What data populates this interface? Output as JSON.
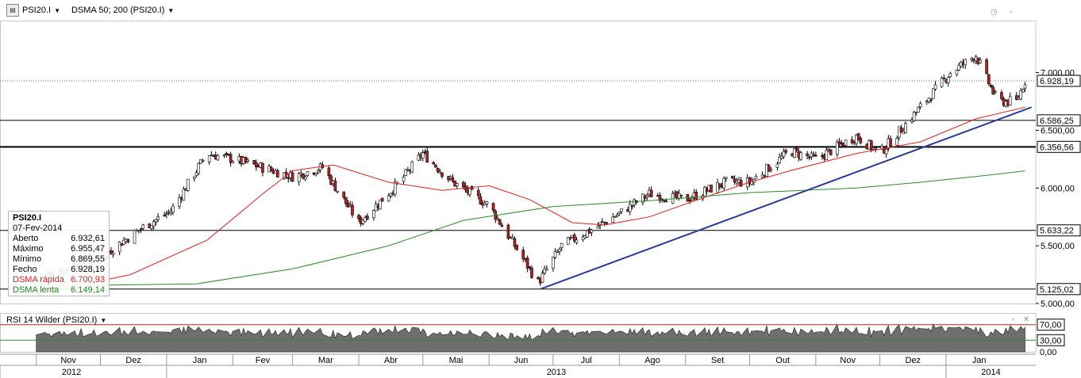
{
  "toolbar": {
    "symbol": "PSI20.I",
    "indicator": "DSMA 50; 200 (PSI20.I)"
  },
  "info_box": {
    "title": "PSI20.I",
    "date": "07-Fev-2014",
    "rows": [
      {
        "label": "Aberto",
        "value": "6.932,61",
        "color": "#000000"
      },
      {
        "label": "Máximo",
        "value": "6.955,47",
        "color": "#000000"
      },
      {
        "label": "Mínimo",
        "value": "6.869,55",
        "color": "#000000"
      },
      {
        "label": "Fecho",
        "value": "6.928,19",
        "color": "#000000"
      },
      {
        "label": "DSMA rápida",
        "value": "6.700,93",
        "color": "#e02020"
      },
      {
        "label": "DSMA lenta",
        "value": "6.149,14",
        "color": "#1a8a1a"
      }
    ]
  },
  "rsi_header": "RSI 14 Wilder (PSI20.I)",
  "colors": {
    "up_candle": "#ffffff",
    "down_candle": "#b52020",
    "fast_ma": "#e02020",
    "slow_ma": "#2a8a2a",
    "trendline": "#2b3a9a",
    "rsi_fill": "#6e6e6e",
    "rsi_upper": "#c02020",
    "rsi_lower": "#2a8a2a"
  },
  "chart_data": [
    {
      "type": "candlestick",
      "title": "PSI20.I",
      "ylim": [
        5000,
        7450
      ],
      "y_ticks": [
        "5.000,00",
        "5.500,00",
        "6.000,00",
        "6.500,00",
        "7.000,00"
      ],
      "y_tick_values": [
        5000,
        5500,
        6000,
        6500,
        7000
      ],
      "x_months": [
        "Nov",
        "Dez",
        "Jan",
        "Fev",
        "Mar",
        "Abr",
        "Mai",
        "Jun",
        "Jul",
        "Ago",
        "Set",
        "Out",
        "Nov",
        "Dez",
        "Jan"
      ],
      "x_years": [
        "2012",
        "2013",
        "2014"
      ],
      "price_levels": [
        {
          "value": 6928.19,
          "label": "6.928,19",
          "style": "dotted"
        },
        {
          "value": 6586.25,
          "label": "6.586,25",
          "style": "solid"
        },
        {
          "value": 6356.56,
          "label": "6.356,56",
          "style": "bold"
        },
        {
          "value": 5633.22,
          "label": "5.633,22",
          "style": "solid"
        },
        {
          "value": 5125.02,
          "label": "5.125,02",
          "style": "solid"
        }
      ],
      "trendline": {
        "start": [
          "2013-06-25",
          5125
        ],
        "end": [
          "2014-02-10",
          6700
        ]
      },
      "monthly_close_path": [
        [
          "2012-11-01",
          5220
        ],
        [
          "2012-12-01",
          5400
        ],
        [
          "2012-12-20",
          5650
        ],
        [
          "2013-01-03",
          5800
        ],
        [
          "2013-01-20",
          6300
        ],
        [
          "2013-02-01",
          6250
        ],
        [
          "2013-02-20",
          6150
        ],
        [
          "2013-03-01",
          6100
        ],
        [
          "2013-03-15",
          6180
        ],
        [
          "2013-04-01",
          5700
        ],
        [
          "2013-04-20",
          6050
        ],
        [
          "2013-05-01",
          6300
        ],
        [
          "2013-05-15",
          6050
        ],
        [
          "2013-06-01",
          5850
        ],
        [
          "2013-06-24",
          5180
        ],
        [
          "2013-07-05",
          5500
        ],
        [
          "2013-07-20",
          5650
        ],
        [
          "2013-08-01",
          5780
        ],
        [
          "2013-08-15",
          5950
        ],
        [
          "2013-09-01",
          5900
        ],
        [
          "2013-09-20",
          6050
        ],
        [
          "2013-10-01",
          6050
        ],
        [
          "2013-10-20",
          6320
        ],
        [
          "2013-11-01",
          6250
        ],
        [
          "2013-11-20",
          6450
        ],
        [
          "2013-12-01",
          6300
        ],
        [
          "2013-12-20",
          6700
        ],
        [
          "2014-01-03",
          7000
        ],
        [
          "2014-01-15",
          7150
        ],
        [
          "2014-01-25",
          6750
        ],
        [
          "2014-02-03",
          6750
        ],
        [
          "2014-02-07",
          6928
        ]
      ],
      "fast_ma_path": [
        [
          "2012-11-01",
          5080
        ],
        [
          "2012-12-15",
          5250
        ],
        [
          "2013-01-20",
          5550
        ],
        [
          "2013-02-15",
          5950
        ],
        [
          "2013-03-01",
          6150
        ],
        [
          "2013-03-20",
          6200
        ],
        [
          "2013-04-15",
          6050
        ],
        [
          "2013-05-10",
          5980
        ],
        [
          "2013-06-01",
          6020
        ],
        [
          "2013-06-20",
          5900
        ],
        [
          "2013-07-10",
          5700
        ],
        [
          "2013-07-25",
          5680
        ],
        [
          "2013-08-15",
          5750
        ],
        [
          "2013-09-10",
          5920
        ],
        [
          "2013-10-01",
          6050
        ],
        [
          "2013-10-20",
          6150
        ],
        [
          "2013-11-20",
          6300
        ],
        [
          "2013-12-20",
          6400
        ],
        [
          "2014-01-15",
          6600
        ],
        [
          "2014-02-07",
          6700
        ]
      ],
      "slow_ma_path": [
        [
          "2012-11-01",
          5150
        ],
        [
          "2013-01-15",
          5170
        ],
        [
          "2013-03-01",
          5300
        ],
        [
          "2013-04-15",
          5500
        ],
        [
          "2013-05-20",
          5720
        ],
        [
          "2013-07-01",
          5840
        ],
        [
          "2013-08-15",
          5890
        ],
        [
          "2013-10-01",
          5960
        ],
        [
          "2013-11-20",
          6000
        ],
        [
          "2013-12-20",
          6050
        ],
        [
          "2014-01-15",
          6100
        ],
        [
          "2014-02-07",
          6149
        ]
      ],
      "last_bar": {
        "date": "2014-02-07",
        "open": 6932.61,
        "high": 6955.47,
        "low": 6869.55,
        "close": 6928.19
      }
    },
    {
      "type": "area",
      "title": "RSI 14 Wilder (PSI20.I)",
      "ylim": [
        0,
        100
      ],
      "y_ticks": [
        "0,00",
        "30,00",
        "70,00"
      ],
      "y_tick_values": [
        0,
        30,
        70
      ],
      "thresholds": [
        70,
        30
      ]
    }
  ]
}
